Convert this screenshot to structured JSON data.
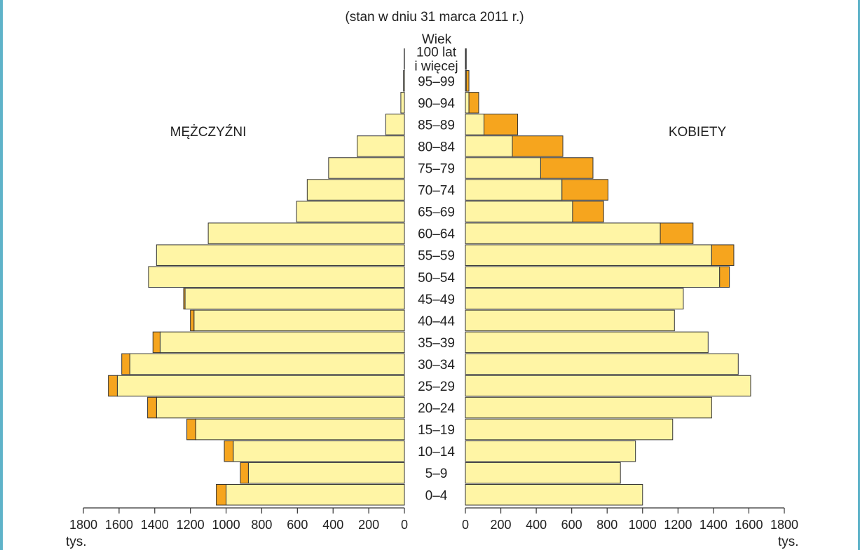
{
  "chart_data": {
    "type": "bar",
    "subtitle": "(stan w dniu 31 marca 2011 r.)",
    "age_axis_label": "Wiek",
    "left_label": "MĘŻCZYŹNI",
    "right_label": "KOBIETY",
    "unit_label": "tys.",
    "categories": [
      "0–4",
      "5–9",
      "10–14",
      "15–19",
      "20–24",
      "25–29",
      "30–34",
      "35–39",
      "40–44",
      "45–49",
      "50–54",
      "55–59",
      "60–64",
      "65–69",
      "70–74",
      "75–79",
      "80–84",
      "85–89",
      "90–94",
      "95–99",
      "100 lat i więcej"
    ],
    "category_lines": [
      [
        "0–4"
      ],
      [
        "5–9"
      ],
      [
        "10–14"
      ],
      [
        "15–19"
      ],
      [
        "20–24"
      ],
      [
        "25–29"
      ],
      [
        "30–34"
      ],
      [
        "35–39"
      ],
      [
        "40–44"
      ],
      [
        "45–49"
      ],
      [
        "50–54"
      ],
      [
        "55–59"
      ],
      [
        "60–64"
      ],
      [
        "65–69"
      ],
      [
        "70–74"
      ],
      [
        "75–79"
      ],
      [
        "80–84"
      ],
      [
        "85–89"
      ],
      [
        "90–94"
      ],
      [
        "95–99"
      ],
      [
        "100 lat",
        "i więcej"
      ]
    ],
    "xlim": [
      0,
      1800
    ],
    "ticks": [
      0,
      200,
      400,
      600,
      800,
      1000,
      1200,
      1400,
      1600,
      1800
    ],
    "series": [
      {
        "side": "left",
        "part": "base",
        "color": "#fff5a5",
        "values": [
          1000,
          875,
          960,
          1170,
          1390,
          1610,
          1540,
          1370,
          1180,
          1230,
          1435,
          1390,
          1100,
          605,
          545,
          425,
          265,
          105,
          20,
          5,
          2
        ]
      },
      {
        "side": "left",
        "part": "excess",
        "color": "#f6a51e",
        "values": [
          55,
          45,
          50,
          50,
          50,
          50,
          45,
          40,
          20,
          8,
          0,
          0,
          0,
          0,
          0,
          0,
          0,
          0,
          0,
          0,
          0
        ]
      },
      {
        "side": "right",
        "part": "base",
        "color": "#fff5a5",
        "values": [
          1000,
          875,
          960,
          1170,
          1390,
          1610,
          1540,
          1370,
          1180,
          1230,
          1435,
          1390,
          1100,
          605,
          545,
          425,
          265,
          105,
          20,
          5,
          2
        ]
      },
      {
        "side": "right",
        "part": "excess",
        "color": "#f6a51e",
        "values": [
          0,
          0,
          0,
          0,
          0,
          0,
          0,
          0,
          0,
          0,
          55,
          125,
          185,
          175,
          260,
          295,
          285,
          190,
          55,
          15,
          3
        ]
      }
    ],
    "colors": {
      "base": "#fff5a5",
      "excess": "#f6a51e",
      "outline": "#333333",
      "frame": "#5fb3c9"
    }
  }
}
